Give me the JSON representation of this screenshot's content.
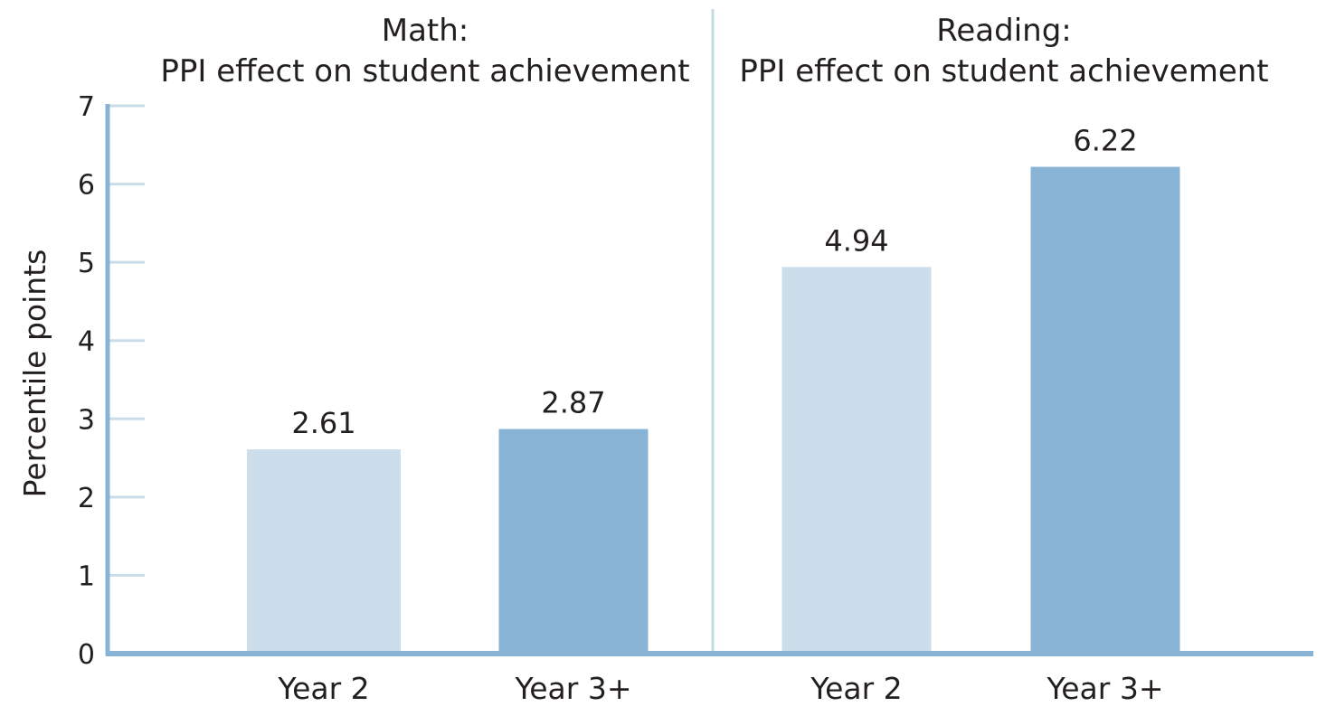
{
  "chart_data": {
    "type": "bar",
    "ylabel": "Percentile points",
    "ylim": [
      0,
      7
    ],
    "yticks": [
      "0",
      "1",
      "2",
      "3",
      "4",
      "5",
      "6",
      "7"
    ],
    "grid": false,
    "colors": {
      "year2": "#ccdeeb",
      "year3plus": "#89b3d4",
      "axis": "#89b3d4",
      "tick": "#c9dde9",
      "divider": "#c2dbe5"
    },
    "panels": [
      {
        "title_line1": "Math:",
        "title_line2": "PPI effect on student achievement",
        "categories": [
          "Year 2",
          "Year 3+"
        ],
        "values": [
          2.61,
          2.87
        ],
        "value_labels": [
          "2.61",
          "2.87"
        ]
      },
      {
        "title_line1": "Reading:",
        "title_line2": "PPI effect on student achievement",
        "categories": [
          "Year 2",
          "Year 3+"
        ],
        "values": [
          4.94,
          6.22
        ],
        "value_labels": [
          "4.94",
          "6.22"
        ]
      }
    ]
  }
}
